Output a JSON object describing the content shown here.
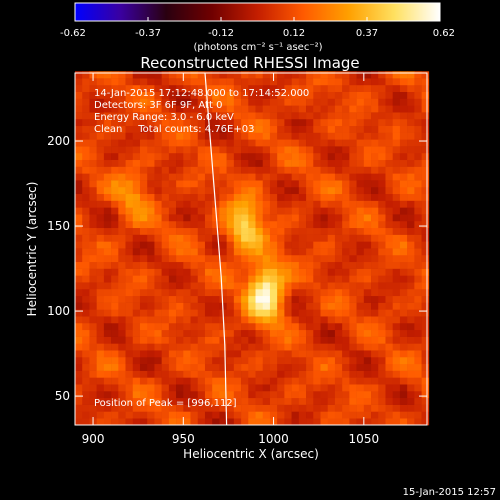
{
  "chart_data": {
    "type": "heatmap",
    "title": "Reconstructed RHESSI Image",
    "xlabel": "Heliocentric X (arcsec)",
    "ylabel": "Heliocentric Y (arcsec)",
    "xlim": [
      890,
      1085
    ],
    "ylim": [
      33,
      240
    ],
    "x_ticks": [
      900,
      950,
      1000,
      1050
    ],
    "y_ticks": [
      50,
      100,
      150,
      200
    ],
    "colorbar": {
      "min": -0.62,
      "max": 0.62,
      "ticks": [
        "-0.62",
        "-0.37",
        "-0.12",
        "0.12",
        "0.37",
        "0.62"
      ],
      "unit_label": "(photons cm⁻² s⁻¹ asec⁻²)",
      "colormap": [
        "#0000ff",
        "#3a00a0",
        "#2a0010",
        "#700000",
        "#c41e00",
        "#ff5a00",
        "#ffa000",
        "#ffe060",
        "#ffffff"
      ]
    },
    "annotations": [
      "14-Jan-2015 17:12:48.000 to 17:14:52.000",
      "Detectors: 3F 6F 9F, Att 0",
      "Energy Range: 3.0 - 6.0 keV",
      "Clean     Total counts: 4.76E+03"
    ],
    "peak_label": "Position of Peak = [996,112]",
    "peak": {
      "x": 996,
      "y": 112,
      "value": 0.62
    },
    "sources": [
      {
        "x": 996,
        "y": 112,
        "peak": 0.62
      },
      {
        "x": 984,
        "y": 150,
        "peak": 0.45
      },
      {
        "x": 922,
        "y": 168,
        "peak": 0.25
      }
    ],
    "limb_curve": [
      [
        962,
        240
      ],
      [
        965,
        200
      ],
      [
        968,
        160
      ],
      [
        971,
        120
      ],
      [
        973,
        80
      ],
      [
        974,
        33
      ]
    ],
    "footer_date": "15-Jan-2015 12:57"
  }
}
